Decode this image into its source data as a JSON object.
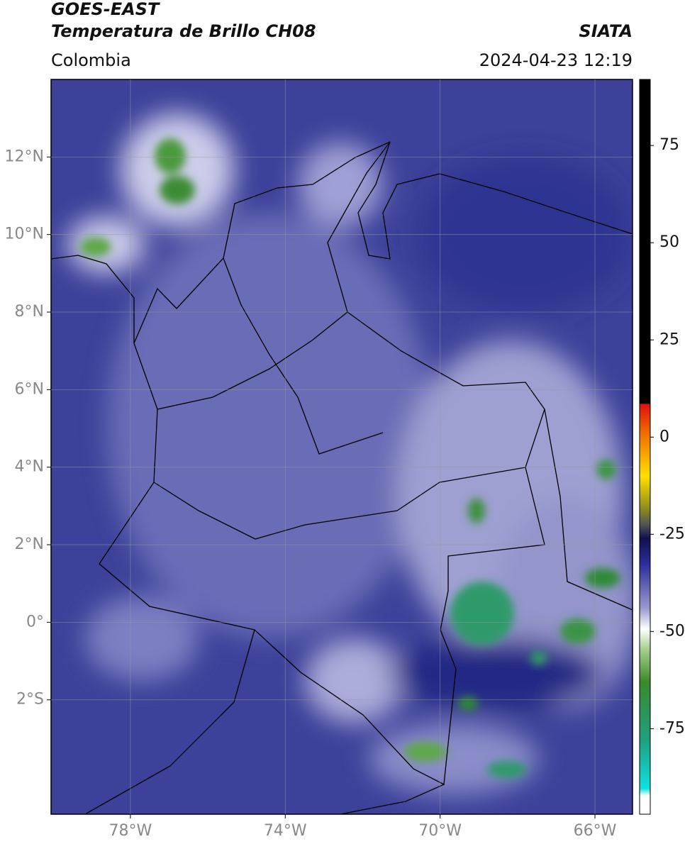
{
  "header": {
    "satellite": "GOES-EAST",
    "product": "Temperatura de Brillo CH08",
    "region": "Colombia",
    "source": "SIATA",
    "datetime": "2024-04-23 12:19"
  },
  "map": {
    "xlim": [
      -80.05,
      -65.03
    ],
    "ylim": [
      -4.95,
      14.0
    ],
    "xticks": [
      {
        "value": -78,
        "label": "78°W"
      },
      {
        "value": -74,
        "label": "74°W"
      },
      {
        "value": -70,
        "label": "70°W"
      },
      {
        "value": -66,
        "label": "66°W"
      }
    ],
    "yticks": [
      {
        "value": 12,
        "label": "12°N"
      },
      {
        "value": 10,
        "label": "10°N"
      },
      {
        "value": 8,
        "label": "8°N"
      },
      {
        "value": 6,
        "label": "6°N"
      },
      {
        "value": 4,
        "label": "4°N"
      },
      {
        "value": 2,
        "label": "2°N"
      },
      {
        "value": 0,
        "label": "0°"
      },
      {
        "value": -2,
        "label": "2°S"
      }
    ],
    "grid": true
  },
  "colorbar": {
    "lim": [
      -97,
      92
    ],
    "ticks": [
      75,
      50,
      25,
      0,
      -25,
      -50,
      -75
    ]
  }
}
